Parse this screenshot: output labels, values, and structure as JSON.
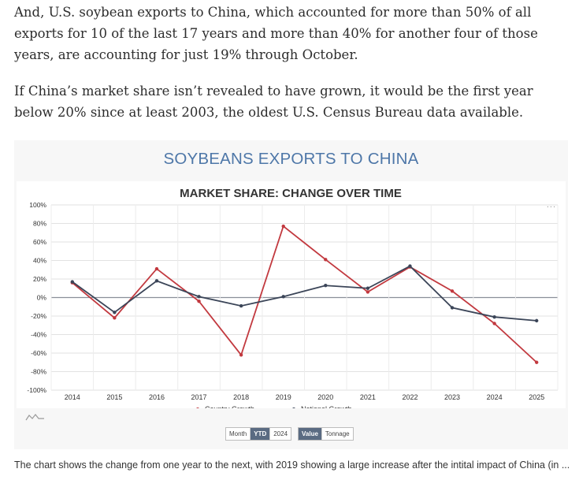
{
  "article": {
    "paragraph1": "And, U.S. soybean exports to China, which accounted for more than 50% of all exports for 10 of the last 17 years and more than 40% for another four of those years, are accounting for just 19% through October.",
    "paragraph2": "If China’s market share isn’t revealed to have grown, it would be the first year below 20% since at least 2003, the oldest U.S. Census Bureau data available.",
    "caption": "The chart shows the change from one year to the next, with 2019 showing a large increase after the intital impact of China (in ..."
  },
  "panel": {
    "title": "SOYBEANS EXPORTS TO CHINA",
    "menu": "...",
    "toggle_period": [
      "Month",
      "YTD",
      "2024"
    ],
    "toggle_measure": [
      "Value",
      "Tonnage"
    ],
    "active_period": "YTD",
    "active_measure": "Value"
  },
  "colors": {
    "country": "#c2393f",
    "national": "#3b4558",
    "title_blue": "#4e77a8"
  },
  "chart_data": {
    "type": "line",
    "title": "MARKET SHARE: CHANGE OVER TIME",
    "x": [
      "2014",
      "2015",
      "2016",
      "2017",
      "2018",
      "2019",
      "2020",
      "2021",
      "2022",
      "2023",
      "2024",
      "2025"
    ],
    "y_ticks": [
      "100%",
      "80%",
      "60%",
      "40%",
      "20%",
      "0%",
      "-20%",
      "-40%",
      "-60%",
      "-80%",
      "-100%"
    ],
    "ylim": [
      -100,
      100
    ],
    "grid": true,
    "legend": "bottom",
    "series": [
      {
        "name": "Country Growth",
        "values": [
          16,
          -22,
          31,
          -4,
          -62,
          77,
          41,
          6,
          33,
          7,
          -28,
          -70
        ]
      },
      {
        "name": "National Growth",
        "values": [
          17,
          -16,
          18,
          1,
          -9,
          1,
          13,
          10,
          34,
          -11,
          -21,
          -25
        ]
      }
    ]
  }
}
